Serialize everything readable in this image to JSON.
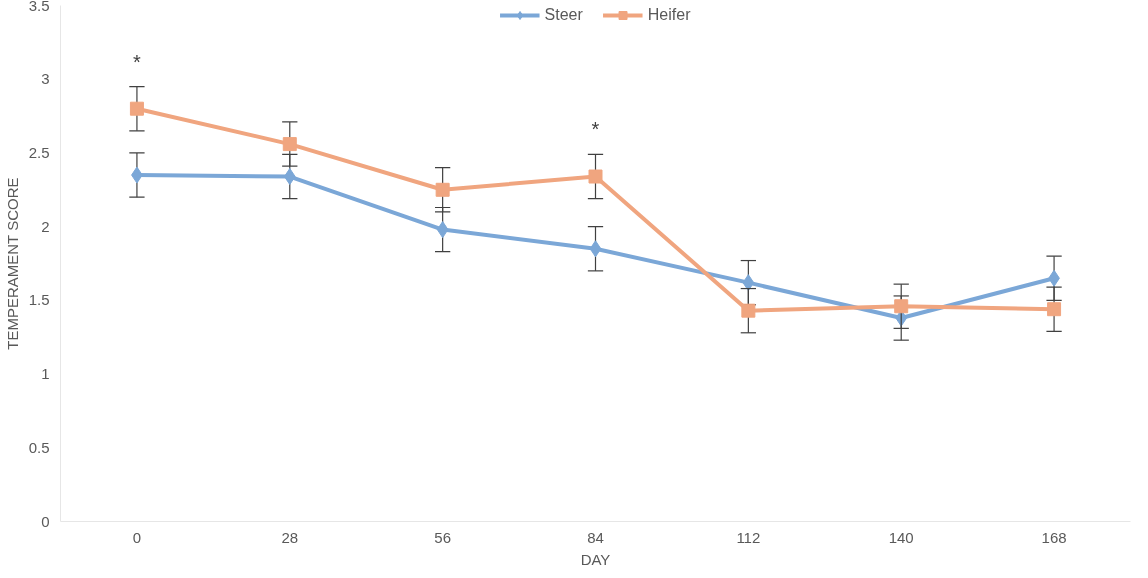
{
  "chart_data": {
    "type": "line",
    "xlabel": "DAY",
    "ylabel": "TEMPERAMENT SCORE",
    "x": [
      0,
      28,
      56,
      84,
      112,
      140,
      168
    ],
    "xlim": [
      -14,
      182
    ],
    "xticks": [
      0,
      28,
      56,
      84,
      112,
      140,
      168
    ],
    "ylim": [
      0,
      3.5
    ],
    "yticks": [
      0,
      0.5,
      1,
      1.5,
      2,
      2.5,
      3,
      3.5
    ],
    "series": [
      {
        "name": "Steer",
        "color": "#7ba7d7",
        "marker": "diamond",
        "values": [
          2.35,
          2.34,
          1.98,
          1.85,
          1.62,
          1.38,
          1.65
        ],
        "errors": [
          0.15,
          0.15,
          0.15,
          0.15,
          0.15,
          0.15,
          0.15
        ]
      },
      {
        "name": "Heifer",
        "color": "#f0a57f",
        "marker": "square",
        "values": [
          2.8,
          2.56,
          2.25,
          2.34,
          1.43,
          1.46,
          1.44
        ],
        "errors": [
          0.15,
          0.15,
          0.15,
          0.15,
          0.15,
          0.15,
          0.15
        ]
      }
    ],
    "annotations": [
      {
        "text": "*",
        "x": 0,
        "y": 2.95
      },
      {
        "text": "*",
        "x": 84,
        "y": 2.49
      }
    ],
    "legend": "top",
    "grid": false,
    "line_style": "solid"
  }
}
